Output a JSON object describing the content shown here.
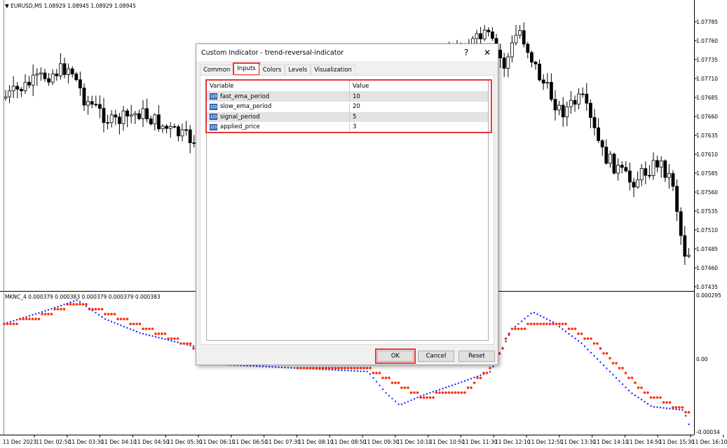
{
  "chart": {
    "symbol_info": "EURUSD,M5  1.08929 1.08945 1.08929 1.08945",
    "price_axis": [
      "1.07785",
      "1.07760",
      "1.07735",
      "1.07710",
      "1.07685",
      "1.07660",
      "1.07635",
      "1.07610",
      "1.07585",
      "1.07560",
      "1.07535",
      "1.07510",
      "1.07485",
      "1.07460",
      "1.07435"
    ],
    "indicator_info": "MKNC_4 0.000379 0.000383 0.000379 0.000379 0.000383",
    "indicator_axis": [
      "0.000295",
      "0.00",
      "-0.00034"
    ],
    "time_axis": [
      "11 Dec 2023",
      "11 Dec 02:50",
      "11 Dec 03:30",
      "11 Dec 04:10",
      "11 Dec 04:50",
      "11 Dec 05:30",
      "11 Dec 06:10",
      "11 Dec 06:50",
      "11 Dec 07:30",
      "11 Dec 08:10",
      "11 Dec 08:50",
      "11 Dec 09:30",
      "11 Dec 10:10",
      "11 Dec 10:50",
      "11 Dec 11:30",
      "11 Dec 12:10",
      "11 Dec 12:50",
      "11 Dec 13:30",
      "11 Dec 14:10",
      "11 Dec 14:50",
      "11 Dec 15:30",
      "11 Dec 16:10"
    ],
    "colors": {
      "signal_dots": "#ff2a00",
      "main_dots": "#1a2cff",
      "bull_candle": "#ffffff",
      "bear_candle": "#000000"
    }
  },
  "dialog": {
    "title": "Custom Indicator - trend-reversal-indicator",
    "help": "?",
    "close": "✕",
    "tabs": [
      {
        "label": "Common"
      },
      {
        "label": "Inputs",
        "active": true
      },
      {
        "label": "Colors"
      },
      {
        "label": "Levels"
      },
      {
        "label": "Visualization"
      }
    ],
    "columns": [
      "Variable",
      "Value"
    ],
    "inputs": [
      {
        "name": "fast_ema_period",
        "value": "10",
        "icon": "123"
      },
      {
        "name": "slow_ema_period",
        "value": "20",
        "icon": "123"
      },
      {
        "name": "signal_period",
        "value": "5",
        "icon": "123"
      },
      {
        "name": "applied_price",
        "value": "3",
        "icon": "123"
      }
    ],
    "buttons": {
      "ok": "OK",
      "cancel": "Cancel",
      "reset": "Reset"
    }
  }
}
